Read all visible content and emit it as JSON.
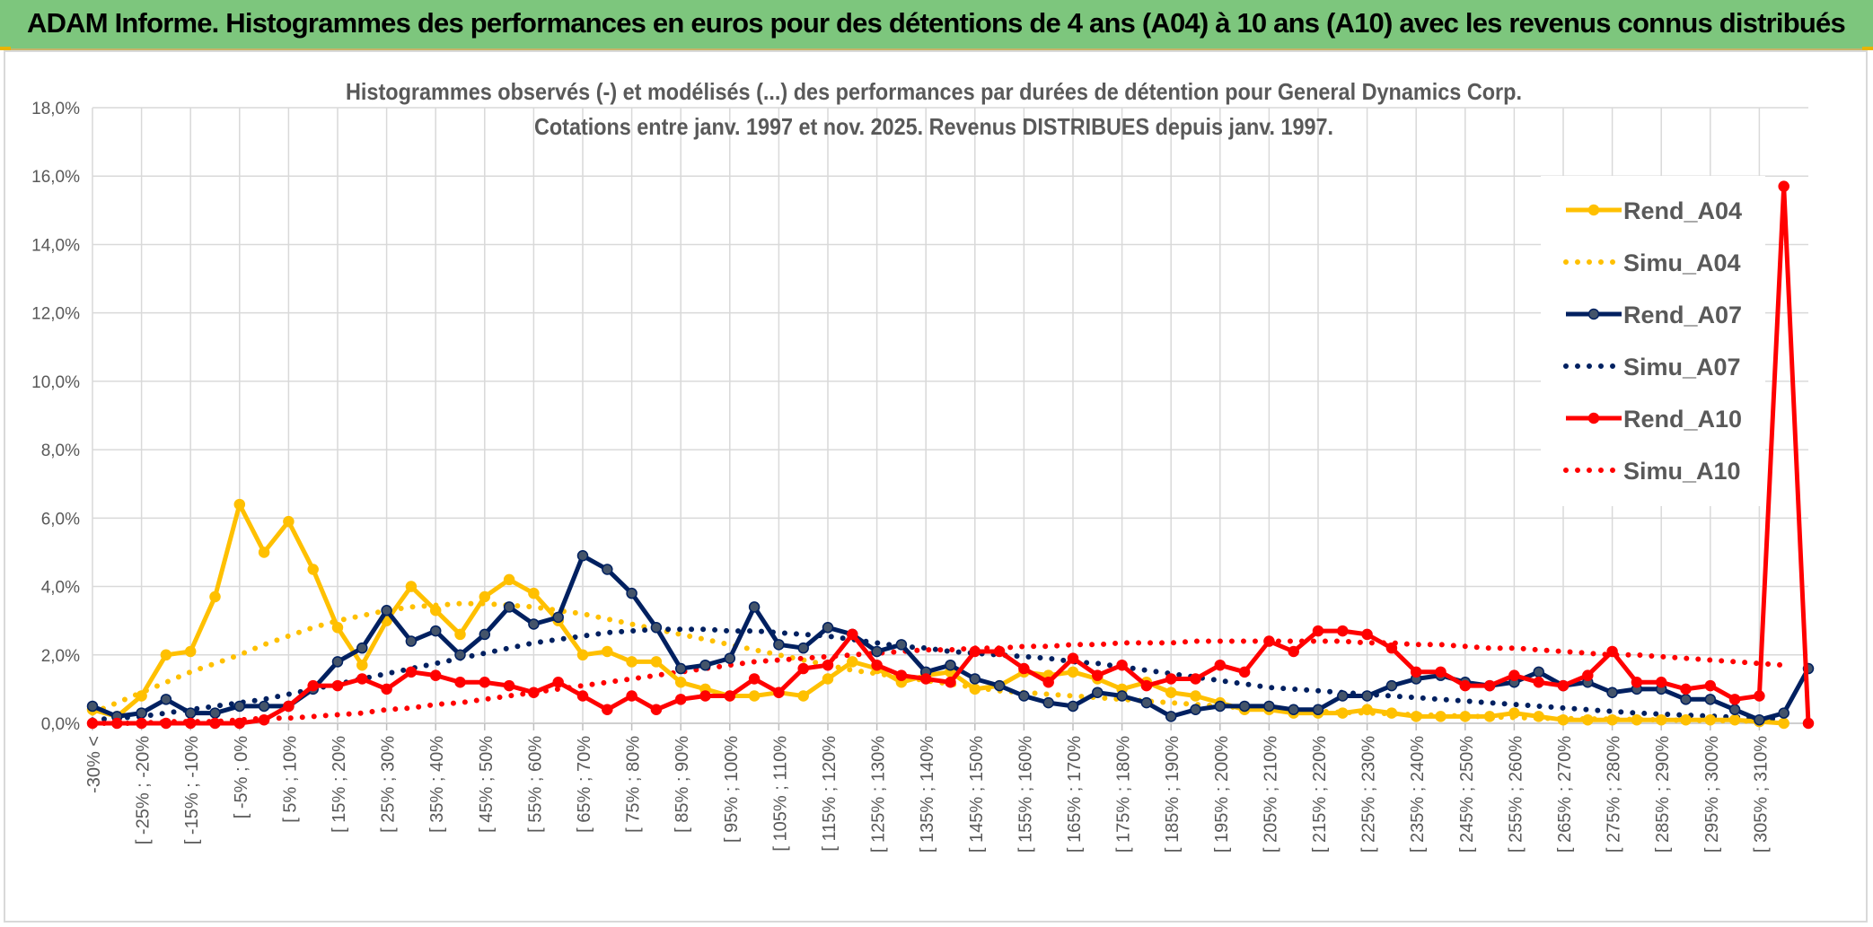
{
  "header": {
    "title": "ADAM Informe. Histogrammes des performances en euros pour des détentions de 4 ans (A04) à 10 ans (A10) avec les revenus connus distribués"
  },
  "colors": {
    "banner": "#7dc67d",
    "a04": "#ffc000",
    "a07": "#002060",
    "a10": "#ff0000",
    "grid": "#d9d9d9",
    "a07_marker": "#44546a"
  },
  "chart_data": {
    "type": "line",
    "title": "Histogrammes observés (-) et modélisés (...) des performances par durées de détention pour General Dynamics Corp.",
    "subtitle": "Cotations entre janv. 1997 et nov. 2025. Revenus DISTRIBUES depuis janv. 1997.",
    "ylim": [
      0,
      18
    ],
    "y_ticks": [
      "0,0%",
      "2,0%",
      "4,0%",
      "6,0%",
      "8,0%",
      "10,0%",
      "12,0%",
      "14,0%",
      "16,0%",
      "18,0%"
    ],
    "x_tick_labels": [
      "-30% <",
      "[ -25% ; -20%",
      "[ -15% ; -10%",
      "[ -5% ; 0%",
      "[ 5% ; 10%",
      "[ 15% ; 20%",
      "[ 25% ; 30%",
      "[ 35% ; 40%",
      "[ 45% ; 50%",
      "[ 55% ; 60%",
      "[ 65% ; 70%",
      "[ 75% ; 80%",
      "[ 85% ; 90%",
      "[ 95% ; 100%",
      "[ 105% ; 110%",
      "[ 115% ; 120%",
      "[ 125% ; 130%",
      "[ 135% ; 140%",
      "[ 145% ; 150%",
      "[ 155% ; 160%",
      "[ 165% ; 170%",
      "[ 175% ; 180%",
      "[ 185% ; 190%",
      "[ 195% ; 200%",
      "[ 205% ; 210%",
      "[ 215% ; 220%",
      "[ 225% ; 230%",
      "[ 235% ; 240%",
      "[ 245% ; 250%",
      "[ 255% ; 260%",
      "[ 265% ; 270%",
      "[ 275% ; 280%",
      "[ 285% ; 290%",
      "[ 295% ; 300%",
      "[ 305% ; 310%"
    ],
    "legend_position": "top-right",
    "grid": true,
    "series": [
      {
        "name": "Rend_A04",
        "style": "solid",
        "color": "#ffc000",
        "values": [
          0.4,
          0.2,
          0.8,
          2.0,
          2.1,
          3.7,
          6.4,
          5.0,
          5.9,
          4.5,
          2.8,
          1.7,
          3.0,
          4.0,
          3.3,
          2.6,
          3.7,
          4.2,
          3.8,
          3.0,
          2.0,
          2.1,
          1.8,
          1.8,
          1.2,
          1.0,
          0.8,
          0.8,
          0.9,
          0.8,
          1.3,
          1.8,
          1.6,
          1.2,
          1.4,
          1.5,
          1.0,
          1.1,
          1.5,
          1.4,
          1.5,
          1.3,
          1.0,
          1.2,
          0.9,
          0.8,
          0.6,
          0.4,
          0.4,
          0.3,
          0.3,
          0.3,
          0.4,
          0.3,
          0.2,
          0.2,
          0.2,
          0.2,
          0.3,
          0.2,
          0.1,
          0.1,
          0.1,
          0.1,
          0.1,
          0.1,
          0.1,
          0.1,
          0.05,
          0.0
        ]
      },
      {
        "name": "Simu_A04",
        "style": "dotted",
        "color": "#ffc000",
        "values": [
          0.3,
          0.6,
          0.9,
          1.2,
          1.5,
          1.75,
          2.0,
          2.3,
          2.55,
          2.8,
          3.0,
          3.15,
          3.3,
          3.4,
          3.45,
          3.5,
          3.5,
          3.45,
          3.4,
          3.3,
          3.2,
          3.05,
          2.9,
          2.75,
          2.6,
          2.45,
          2.3,
          2.15,
          2.0,
          1.85,
          1.7,
          1.55,
          1.45,
          1.35,
          1.25,
          1.15,
          1.05,
          0.95,
          0.9,
          0.85,
          0.8,
          0.75,
          0.7,
          0.65,
          0.6,
          0.55,
          0.5,
          0.45,
          0.42,
          0.38,
          0.35,
          0.32,
          0.3,
          0.28,
          0.25,
          0.23,
          0.21,
          0.19,
          0.17,
          0.15,
          0.14,
          0.13,
          0.12,
          0.11,
          0.1,
          0.09,
          0.08,
          0.07,
          0.06,
          0.05
        ]
      },
      {
        "name": "Rend_A07",
        "style": "solid",
        "color": "#002060",
        "values": [
          0.5,
          0.2,
          0.3,
          0.7,
          0.3,
          0.3,
          0.5,
          0.5,
          0.5,
          1.0,
          1.8,
          2.2,
          3.3,
          2.4,
          2.7,
          2.0,
          2.6,
          3.4,
          2.9,
          3.1,
          4.9,
          4.5,
          3.8,
          2.8,
          1.6,
          1.7,
          1.9,
          3.4,
          2.3,
          2.2,
          2.8,
          2.6,
          2.1,
          2.3,
          1.5,
          1.7,
          1.3,
          1.1,
          0.8,
          0.6,
          0.5,
          0.9,
          0.8,
          0.6,
          0.2,
          0.4,
          0.5,
          0.5,
          0.5,
          0.4,
          0.4,
          0.8,
          0.8,
          1.1,
          1.3,
          1.4,
          1.2,
          1.1,
          1.2,
          1.5,
          1.1,
          1.2,
          0.9,
          1.0,
          1.0,
          0.7,
          0.7,
          0.4,
          0.1,
          0.3,
          1.6
        ]
      },
      {
        "name": "Simu_A07",
        "style": "dotted",
        "color": "#002060",
        "values": [
          0.1,
          0.15,
          0.2,
          0.3,
          0.4,
          0.5,
          0.6,
          0.7,
          0.85,
          1.0,
          1.15,
          1.3,
          1.45,
          1.6,
          1.75,
          1.9,
          2.05,
          2.2,
          2.35,
          2.45,
          2.55,
          2.65,
          2.7,
          2.75,
          2.75,
          2.75,
          2.7,
          2.7,
          2.65,
          2.6,
          2.55,
          2.45,
          2.35,
          2.25,
          2.2,
          2.1,
          2.05,
          2.0,
          1.95,
          1.9,
          1.8,
          1.75,
          1.65,
          1.55,
          1.45,
          1.35,
          1.25,
          1.15,
          1.05,
          1.0,
          0.95,
          0.9,
          0.85,
          0.8,
          0.75,
          0.7,
          0.65,
          0.6,
          0.55,
          0.5,
          0.45,
          0.4,
          0.35,
          0.3,
          0.27,
          0.24,
          0.21,
          0.18,
          0.15,
          0.12
        ]
      },
      {
        "name": "Rend_A10",
        "style": "solid",
        "color": "#ff0000",
        "values": [
          0.0,
          0.0,
          0.0,
          0.0,
          0.0,
          0.0,
          0.0,
          0.1,
          0.5,
          1.1,
          1.1,
          1.3,
          1.0,
          1.5,
          1.4,
          1.2,
          1.2,
          1.1,
          0.9,
          1.2,
          0.8,
          0.4,
          0.8,
          0.4,
          0.7,
          0.8,
          0.8,
          1.3,
          0.9,
          1.6,
          1.7,
          2.6,
          1.7,
          1.4,
          1.3,
          1.2,
          2.1,
          2.1,
          1.6,
          1.2,
          1.9,
          1.4,
          1.7,
          1.1,
          1.3,
          1.3,
          1.7,
          1.5,
          2.4,
          2.1,
          2.7,
          2.7,
          2.6,
          2.2,
          1.5,
          1.5,
          1.1,
          1.1,
          1.4,
          1.2,
          1.1,
          1.4,
          2.1,
          1.2,
          1.2,
          1.0,
          1.1,
          0.7,
          0.8,
          15.7,
          0.0
        ]
      },
      {
        "name": "Simu_A10",
        "style": "dotted",
        "color": "#ff0000",
        "values": [
          0.0,
          0.0,
          0.0,
          0.05,
          0.05,
          0.05,
          0.1,
          0.15,
          0.15,
          0.2,
          0.25,
          0.3,
          0.4,
          0.45,
          0.55,
          0.6,
          0.7,
          0.8,
          0.9,
          1.0,
          1.1,
          1.2,
          1.3,
          1.4,
          1.5,
          1.6,
          1.7,
          1.8,
          1.85,
          1.9,
          1.95,
          2.0,
          2.05,
          2.1,
          2.15,
          2.15,
          2.2,
          2.2,
          2.25,
          2.25,
          2.3,
          2.3,
          2.35,
          2.35,
          2.35,
          2.4,
          2.4,
          2.4,
          2.4,
          2.4,
          2.4,
          2.4,
          2.35,
          2.35,
          2.3,
          2.3,
          2.25,
          2.2,
          2.2,
          2.15,
          2.1,
          2.05,
          2.0,
          2.0,
          1.95,
          1.9,
          1.85,
          1.8,
          1.75,
          1.7
        ]
      }
    ]
  }
}
